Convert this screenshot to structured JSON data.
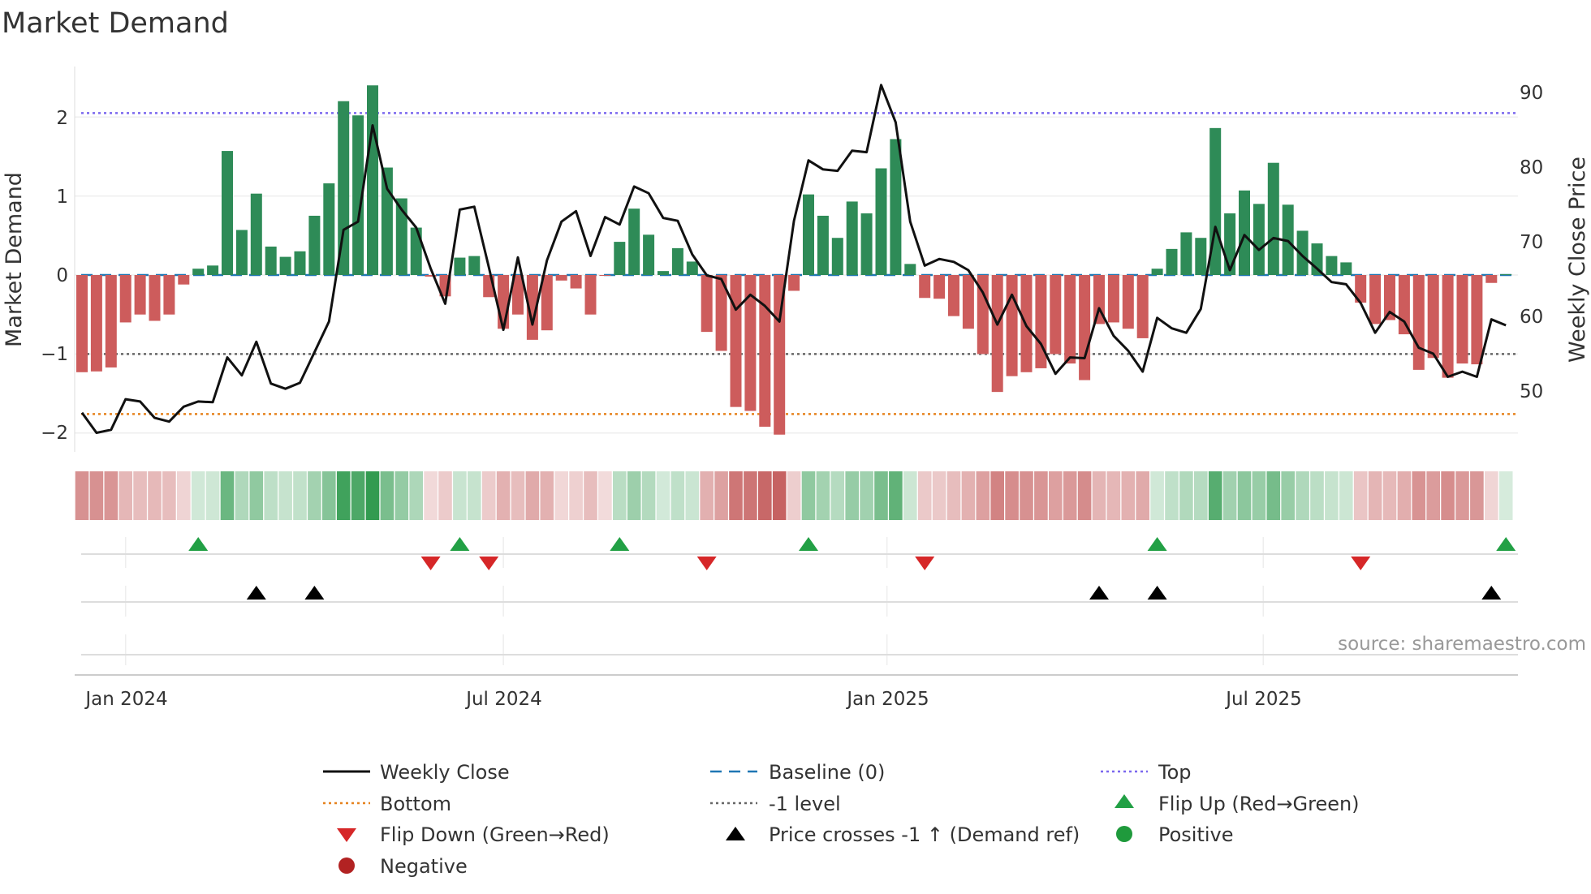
{
  "chart_data": {
    "type": "bar",
    "title": "Market Demand",
    "ylabel": "Market Demand",
    "y2label": "Weekly Close Price",
    "ylim": [
      -2.2,
      2.6
    ],
    "y2lim": [
      42.5,
      92.5
    ],
    "yticks": [
      "2",
      "1",
      "0",
      "−1",
      "−2"
    ],
    "ytick_values": [
      2,
      1,
      0,
      -1,
      -2
    ],
    "y2ticks": [
      "90",
      "80",
      "70",
      "60",
      "50"
    ],
    "y2tick_values": [
      90,
      80,
      70,
      60,
      50
    ],
    "x_start": "2023-12-11",
    "x_step_days": 7,
    "xticks": [
      "Jan 2024",
      "Jul 2024",
      "Jan 2025",
      "Jul 2025"
    ],
    "xtick_week_index": [
      3,
      29,
      55.4,
      81.3
    ],
    "grid": true,
    "reference_lines": {
      "top": 2.05,
      "bottom": -1.76,
      "minus_one": -1,
      "baseline": 0
    },
    "series": [
      {
        "name": "Market Demand",
        "type": "bar",
        "values": [
          -1.23,
          -1.22,
          -1.17,
          -0.6,
          -0.5,
          -0.58,
          -0.5,
          -0.12,
          0.08,
          0.12,
          1.57,
          0.57,
          1.03,
          0.36,
          0.23,
          0.3,
          0.75,
          1.16,
          2.2,
          2.02,
          2.4,
          1.36,
          0.97,
          0.6,
          -0.02,
          -0.27,
          0.22,
          0.24,
          -0.28,
          -0.68,
          -0.5,
          -0.82,
          -0.7,
          -0.07,
          -0.17,
          -0.5,
          -0.01,
          0.42,
          0.84,
          0.51,
          0.05,
          0.34,
          0.17,
          -0.72,
          -0.96,
          -1.67,
          -1.72,
          -1.92,
          -2.02,
          -0.2,
          1.02,
          0.75,
          0.47,
          0.93,
          0.78,
          1.35,
          1.72,
          0.14,
          -0.29,
          -0.3,
          -0.52,
          -0.68,
          -1.0,
          -1.48,
          -1.28,
          -1.23,
          -1.18,
          -1.0,
          -1.12,
          -1.33,
          -0.62,
          -0.6,
          -0.68,
          -0.8,
          0.08,
          0.33,
          0.54,
          0.47,
          1.86,
          0.78,
          1.07,
          0.9,
          1.42,
          0.89,
          0.56,
          0.4,
          0.24,
          0.16,
          -0.35,
          -0.62,
          -0.57,
          -0.75,
          -1.2,
          -1.05,
          -1.3,
          -1.12,
          -1.13,
          -0.1,
          0.01
        ]
      },
      {
        "name": "Weekly Close",
        "type": "line",
        "axis": "right",
        "values": [
          47.1,
          44.4,
          44.8,
          48.9,
          48.6,
          46.4,
          45.9,
          47.9,
          48.6,
          48.5,
          54.5,
          52.1,
          56.6,
          51.0,
          50.3,
          51.1,
          55.2,
          59.3,
          71.6,
          72.7,
          85.6,
          77.1,
          74.3,
          71.9,
          66.4,
          61.7,
          74.3,
          74.7,
          66.6,
          58.2,
          67.9,
          58.9,
          67.5,
          72.7,
          74.1,
          68.1,
          73.3,
          72.3,
          77.4,
          76.5,
          73.2,
          72.8,
          68.3,
          65.5,
          65.0,
          60.9,
          62.9,
          61.4,
          59.3,
          72.8,
          80.9,
          79.7,
          79.5,
          82.2,
          82.0,
          91.0,
          86.0,
          72.7,
          66.8,
          67.7,
          67.3,
          66.2,
          63.2,
          58.9,
          62.9,
          58.7,
          56.3,
          52.3,
          54.5,
          54.4,
          61.1,
          57.4,
          55.4,
          52.6,
          59.8,
          58.4,
          57.8,
          61.0,
          72.0,
          66.2,
          70.9,
          68.9,
          70.5,
          70.1,
          68.1,
          66.4,
          64.6,
          64.3,
          61.8,
          57.8,
          60.6,
          59.3,
          55.8,
          55.0,
          51.9,
          52.6,
          51.9,
          59.6,
          58.8
        ]
      }
    ],
    "events": {
      "flip_up": [
        8,
        26,
        37,
        50,
        74,
        98
      ],
      "flip_down": [
        24,
        28,
        43,
        58,
        88
      ],
      "price_crosses": [
        12,
        16,
        70,
        74,
        97
      ]
    },
    "legend": {
      "position": "bottom",
      "items": [
        "Weekly Close",
        "Baseline (0)",
        "Top",
        "Bottom",
        "-1 level",
        "Flip Up (Red→Green)",
        "Flip Down (Green→Red)",
        "Price crosses -1 ↑ (Demand ref)",
        "Positive",
        "Negative"
      ]
    },
    "source": "source: sharemaestro.com",
    "colors": {
      "positive": "#2e8b57",
      "negative": "#cd5c5c",
      "line": "#111111",
      "baseline": "#1f77b4",
      "top": "#7b68ee",
      "bottom": "#e6821e",
      "minus_one": "#666666",
      "flip_up": "#22a045",
      "flip_down": "#d62728",
      "cross": "#000000",
      "pos_dot": "#1f9a3c",
      "neg_dot": "#b22222"
    }
  }
}
